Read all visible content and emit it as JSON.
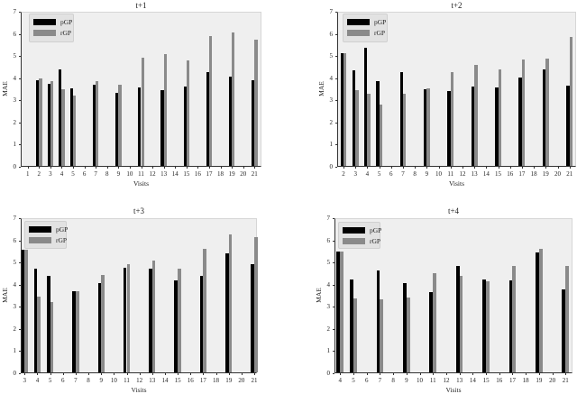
{
  "figure": {
    "ylabel": "MAE",
    "xlabel": "Visits",
    "legend": {
      "pgp": "pGP",
      "rgp": "rGP"
    },
    "colors": {
      "pgp": "#000000",
      "rgp": "#8a8a8a",
      "plot_bg": "#efefef"
    },
    "yticks": [
      "0",
      "1",
      "2",
      "3",
      "4",
      "5",
      "6",
      "7"
    ]
  },
  "chart_data": [
    {
      "type": "bar",
      "title": "t+1",
      "xlabel": "Visits",
      "ylabel": "MAE",
      "ylim": [
        0,
        7
      ],
      "legend_position": "upper left",
      "categories": [
        "1",
        "2",
        "3",
        "4",
        "5",
        "6",
        "7",
        "8",
        "9",
        "10",
        "11",
        "12",
        "13",
        "14",
        "15",
        "16",
        "17",
        "18",
        "19",
        "20",
        "21"
      ],
      "series": [
        {
          "name": "pGP",
          "values": [
            null,
            3.88,
            3.72,
            4.35,
            3.52,
            null,
            3.66,
            null,
            3.29,
            null,
            3.56,
            null,
            3.42,
            null,
            3.59,
            null,
            4.23,
            null,
            4.05,
            null,
            3.86
          ]
        },
        {
          "name": "rGP",
          "values": [
            null,
            3.95,
            3.82,
            3.45,
            3.16,
            null,
            3.82,
            null,
            3.66,
            null,
            4.88,
            null,
            5.05,
            null,
            4.75,
            null,
            5.85,
            null,
            6.03,
            null,
            5.69
          ]
        }
      ]
    },
    {
      "type": "bar",
      "title": "t+2",
      "xlabel": "Visits",
      "ylabel": "MAE",
      "ylim": [
        0,
        7
      ],
      "legend_position": "upper left",
      "categories": [
        "2",
        "3",
        "4",
        "5",
        "6",
        "7",
        "8",
        "9",
        "10",
        "11",
        "12",
        "13",
        "14",
        "15",
        "16",
        "17",
        "18",
        "19",
        "20",
        "21"
      ],
      "series": [
        {
          "name": "pGP",
          "values": [
            5.07,
            4.3,
            5.33,
            3.83,
            null,
            4.24,
            null,
            3.45,
            null,
            3.37,
            null,
            3.6,
            null,
            3.56,
            null,
            3.99,
            null,
            4.36,
            null,
            3.61
          ]
        },
        {
          "name": "rGP",
          "values": [
            5.07,
            3.42,
            3.26,
            2.77,
            null,
            3.26,
            null,
            3.49,
            null,
            4.24,
            null,
            4.57,
            null,
            4.36,
            null,
            4.8,
            null,
            4.83,
            null,
            5.82
          ]
        }
      ]
    },
    {
      "type": "bar",
      "title": "t+3",
      "xlabel": "Visits",
      "ylabel": "MAE",
      "ylim": [
        0,
        7
      ],
      "legend_position": "upper left",
      "categories": [
        "3",
        "4",
        "5",
        "6",
        "7",
        "8",
        "9",
        "10",
        "11",
        "12",
        "13",
        "14",
        "15",
        "16",
        "17",
        "18",
        "19",
        "20",
        "21"
      ],
      "series": [
        {
          "name": "pGP",
          "values": [
            5.54,
            4.67,
            4.37,
            null,
            3.65,
            null,
            4.02,
            null,
            4.74,
            null,
            4.69,
            null,
            4.14,
            null,
            4.34,
            null,
            5.39,
            null,
            4.9
          ]
        },
        {
          "name": "rGP",
          "values": [
            5.54,
            3.43,
            3.18,
            null,
            3.65,
            null,
            4.41,
            null,
            4.9,
            null,
            5.03,
            null,
            4.67,
            null,
            5.59,
            null,
            6.23,
            null,
            6.12
          ]
        }
      ]
    },
    {
      "type": "bar",
      "title": "t+4",
      "xlabel": "Visits",
      "ylabel": "MAE",
      "ylim": [
        0,
        7
      ],
      "legend_position": "upper left",
      "categories": [
        "4",
        "5",
        "6",
        "7",
        "8",
        "9",
        "10",
        "11",
        "12",
        "13",
        "14",
        "15",
        "16",
        "17",
        "18",
        "19",
        "20",
        "21"
      ],
      "series": [
        {
          "name": "pGP",
          "values": [
            5.45,
            4.21,
            null,
            4.6,
            null,
            4.04,
            null,
            3.61,
            null,
            4.8,
            null,
            4.21,
            null,
            4.14,
            null,
            5.43,
            null,
            3.73
          ]
        },
        {
          "name": "rGP",
          "values": [
            5.45,
            3.32,
            null,
            3.28,
            null,
            3.38,
            null,
            4.48,
            null,
            4.34,
            null,
            4.12,
            null,
            4.8,
            null,
            5.56,
            null,
            4.8
          ]
        }
      ]
    }
  ]
}
